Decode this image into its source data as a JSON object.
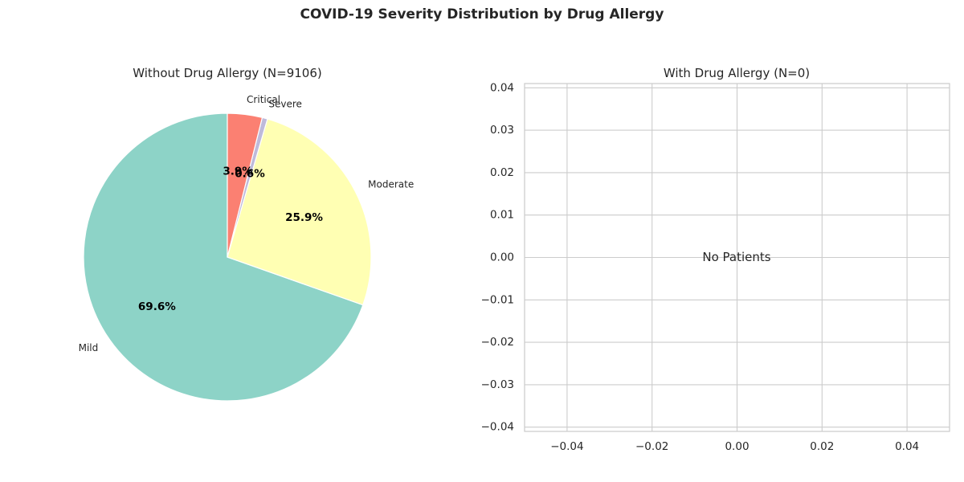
{
  "figure": {
    "title": "COVID-19 Severity Distribution by Drug Allergy"
  },
  "chart_data": [
    {
      "type": "pie",
      "title": "Without Drug Allergy (N=9106)",
      "slices": [
        {
          "label": "Mild",
          "value": 69.6,
          "pct_label": "69.6%",
          "color": "#8dd3c7"
        },
        {
          "label": "Moderate",
          "value": 25.9,
          "pct_label": "25.9%",
          "color": "#ffffb3"
        },
        {
          "label": "Severe",
          "value": 0.6,
          "pct_label": "0.6%",
          "color": "#bebada"
        },
        {
          "label": "Critical",
          "value": 3.9,
          "pct_label": "3.9%",
          "color": "#fb8072"
        }
      ],
      "start_angle_deg": 90,
      "direction": "counterclockwise"
    },
    {
      "type": "scatter",
      "title": "With Drug Allergy (N=0)",
      "annotation": "No Patients",
      "xlim": [
        -0.05,
        0.05
      ],
      "ylim": [
        -0.041,
        0.041
      ],
      "xticks": [
        -0.04,
        -0.02,
        0.0,
        0.02,
        0.04
      ],
      "xtick_labels": [
        "−0.04",
        "−0.02",
        "0.00",
        "0.02",
        "0.04"
      ],
      "yticks": [
        0.04,
        0.03,
        0.02,
        0.01,
        0.0,
        -0.01,
        -0.02,
        -0.03,
        -0.04
      ],
      "ytick_labels": [
        "0.04",
        "0.03",
        "0.02",
        "0.01",
        "0.00",
        "−0.01",
        "−0.02",
        "−0.03",
        "−0.04"
      ],
      "grid": true,
      "grid_color": "#cccccc"
    }
  ]
}
